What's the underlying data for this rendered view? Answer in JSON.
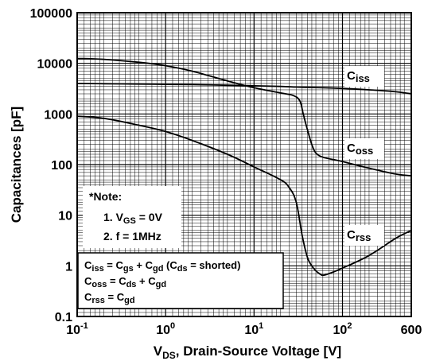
{
  "chart_data": {
    "type": "line",
    "xscale": "log",
    "yscale": "log",
    "xlim": [
      0.1,
      600
    ],
    "ylim": [
      0.1,
      100000
    ],
    "xlabel": {
      "prefix": "V",
      "sub": "DS",
      "suffix": ", Drain-Source Voltage [V]"
    },
    "ylabel": "Capacitances [pF]",
    "x_ticks": [
      {
        "base": "10",
        "exp": "-1"
      },
      {
        "base": "10",
        "exp": "0"
      },
      {
        "base": "10",
        "exp": "1"
      },
      {
        "base": "10",
        "exp": "2"
      },
      {
        "plain": "600"
      }
    ],
    "y_ticks": [
      "0.1",
      "1",
      "10",
      "100",
      "1000",
      "10000",
      "100000"
    ],
    "grid": true,
    "series": [
      {
        "name": {
          "main": "C",
          "sub": "iss"
        },
        "x": [
          0.1,
          0.2,
          0.5,
          1,
          2,
          5,
          10,
          20,
          30,
          40,
          60,
          100,
          200,
          400,
          600
        ],
        "y": [
          4000,
          3950,
          3900,
          3850,
          3800,
          3700,
          3600,
          3500,
          3400,
          3350,
          3300,
          3200,
          3000,
          2750,
          2500
        ]
      },
      {
        "name": {
          "main": "C",
          "sub": "oss"
        },
        "x": [
          0.1,
          0.2,
          0.5,
          1,
          2,
          5,
          10,
          20,
          28,
          33,
          36,
          40,
          45,
          50,
          60,
          80,
          100,
          200,
          400,
          600
        ],
        "y": [
          12500,
          12000,
          10500,
          9000,
          7000,
          4500,
          3300,
          2600,
          2300,
          1800,
          1000,
          500,
          250,
          170,
          140,
          125,
          115,
          85,
          65,
          60
        ]
      },
      {
        "name": {
          "main": "C",
          "sub": "rss"
        },
        "x": [
          0.1,
          0.2,
          0.5,
          1,
          2,
          5,
          10,
          20,
          25,
          30,
          35,
          40,
          45,
          50,
          55,
          60,
          70,
          100,
          200,
          400,
          600
        ],
        "y": [
          900,
          820,
          600,
          450,
          300,
          160,
          90,
          50,
          35,
          18,
          4,
          1.5,
          1,
          0.8,
          0.7,
          0.65,
          0.7,
          0.9,
          1.6,
          3.5,
          5
        ]
      }
    ],
    "note": {
      "title": "*Note:",
      "items": [
        {
          "num": "1.",
          "prefix": "V",
          "sub": "GS",
          "rest": " = 0V"
        },
        {
          "num": "2.",
          "prefix": "",
          "sub": "",
          "rest": "f = 1MHz"
        }
      ]
    },
    "definitions": [
      {
        "lhs": {
          "c": "C",
          "s": "iss"
        },
        "terms": [
          {
            "c": "C",
            "s": "gs"
          },
          {
            "c": "C",
            "s": "gd"
          }
        ],
        "paren": {
          "c": "C",
          "s": "ds",
          "rest": " = shorted)"
        }
      },
      {
        "lhs": {
          "c": "C",
          "s": "oss"
        },
        "terms": [
          {
            "c": "C",
            "s": "ds"
          },
          {
            "c": "C",
            "s": "gd"
          }
        ]
      },
      {
        "lhs": {
          "c": "C",
          "s": "rss"
        },
        "terms": [
          {
            "c": "C",
            "s": "gd"
          }
        ]
      }
    ]
  }
}
